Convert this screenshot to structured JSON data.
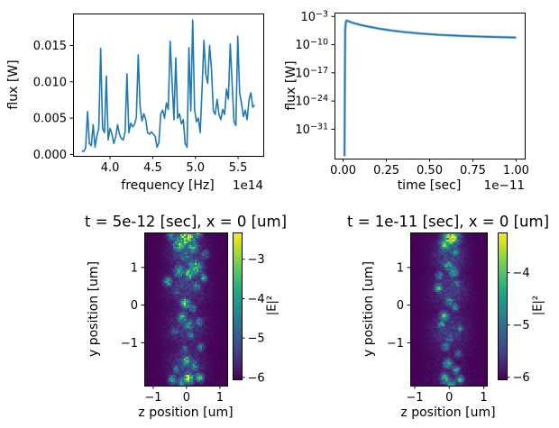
{
  "figure": {
    "background": "#ffffff",
    "line_color": "#1f77b4",
    "text_color": "#000000",
    "spine_color": "#000000",
    "viridis_stops": [
      "#440154",
      "#482475",
      "#414487",
      "#355f8d",
      "#2a788e",
      "#21918c",
      "#22a884",
      "#44bf70",
      "#7ad151",
      "#bddf26",
      "#fde725"
    ]
  },
  "chart_data": [
    {
      "id": "flux-spectrum",
      "type": "line",
      "xlabel": "frequency [Hz]",
      "ylabel": "flux [W]",
      "x_offset": "1e14",
      "xlim": [
        3.566,
        5.795
      ],
      "ylim": [
        -0.0002,
        0.0194
      ],
      "xticks": [
        4.0,
        4.5,
        5.0,
        5.5
      ],
      "xtick_labels": [
        "4.0",
        "4.5",
        "5.0",
        "5.5"
      ],
      "yticks": [
        0.0,
        0.005,
        0.01,
        0.015
      ],
      "ytick_labels": [
        "0.000",
        "0.005",
        "0.010",
        "0.015"
      ],
      "x_start": 3.67,
      "x_step": 0.022,
      "y": [
        0.0005,
        0.0004,
        0.0009,
        0.0059,
        0.0015,
        0.0012,
        0.0041,
        0.001,
        0.0026,
        0.0036,
        0.0146,
        0.0036,
        0.003,
        0.0108,
        0.002,
        0.0036,
        0.0028,
        0.0015,
        0.0024,
        0.0041,
        0.0028,
        0.0022,
        0.002,
        0.0031,
        0.0111,
        0.003,
        0.0043,
        0.0038,
        0.0041,
        0.0051,
        0.0137,
        0.0066,
        0.0046,
        0.0056,
        0.0048,
        0.003,
        0.0028,
        0.0031,
        0.0028,
        0.0025,
        0.001,
        0.0016,
        0.0056,
        0.0061,
        0.005,
        0.0071,
        0.0062,
        0.0156,
        0.0102,
        0.0048,
        0.0133,
        0.005,
        0.0056,
        0.0042,
        0.0048,
        0.0015,
        0.001,
        0.0147,
        0.006,
        0.0185,
        0.0062,
        0.0045,
        0.005,
        0.003,
        0.0091,
        0.0157,
        0.011,
        0.0098,
        0.015,
        0.0118,
        0.006,
        0.0055,
        0.0076,
        0.0055,
        0.0048,
        0.0062,
        0.0055,
        0.009,
        0.0076,
        0.0152,
        0.0098,
        0.0045,
        0.004,
        0.0163,
        0.0085,
        0.007,
        0.0052,
        0.0061,
        0.0048,
        0.0075,
        0.0085,
        0.0065,
        0.0068
      ]
    },
    {
      "id": "flux-decay",
      "type": "line",
      "yscale": "log",
      "xlabel": "time [sec]",
      "ylabel": "flux [W]",
      "x_offset": "1e−11",
      "xlim": [
        -0.05,
        1.05
      ],
      "ylim_exp": [
        -38.3,
        -2.04
      ],
      "xticks": [
        0.0,
        0.25,
        0.5,
        0.75,
        1.0
      ],
      "xtick_labels": [
        "0.00",
        "0.25",
        "0.50",
        "0.75",
        "1.00"
      ],
      "ytick_exponents": [
        -3,
        -10,
        -17,
        -24,
        -31
      ],
      "x": [
        0.008,
        0.01,
        0.012,
        0.015,
        0.018,
        0.02,
        0.05,
        0.1,
        0.15,
        0.2,
        0.25,
        0.3,
        0.35,
        0.4,
        0.45,
        0.5,
        0.55,
        0.6,
        0.65,
        0.7,
        0.75,
        0.8,
        0.85,
        0.9,
        0.95,
        1.0
      ],
      "y": [
        2e-38,
        1e-20,
        3e-07,
        2e-05,
        7e-05,
        0.0001,
        3.2e-05,
        7.9e-06,
        2.8e-06,
        1.1e-06,
        5e-07,
        2.5e-07,
        1.4e-07,
        8.9e-08,
        5.6e-08,
        4e-08,
        2.8e-08,
        2.2e-08,
        1.8e-08,
        1.4e-08,
        1.2e-08,
        1e-08,
        8.7e-09,
        7.6e-09,
        6.6e-09,
        6e-09
      ]
    },
    {
      "id": "field-snapshot-t5e-12",
      "type": "heatmap",
      "title": "t = 5e-12 [sec], x = 0 [um]",
      "xlabel": "z position [um]",
      "ylabel": "y position [um]",
      "xlim": [
        -1.27,
        1.22
      ],
      "ylim": [
        -2.14,
        1.93
      ],
      "xticks": [
        -1,
        0,
        1
      ],
      "xtick_labels": [
        "−1",
        "0",
        "1"
      ],
      "yticks": [
        -1,
        0,
        1
      ],
      "ytick_labels": [
        "−1",
        "0",
        "1"
      ],
      "colorbar": {
        "label": "|E|²",
        "vmin": -6.05,
        "vmax": -2.32,
        "ticks": [
          -3,
          -4,
          -5,
          -6
        ],
        "tick_labels": [
          "−3",
          "−4",
          "−5",
          "−6"
        ]
      },
      "noise_seed": 1,
      "base_value": -6.05,
      "blobs": [
        [
          0.0,
          1.8,
          -2.4,
          0.22
        ],
        [
          -0.2,
          1.62,
          -3.2,
          0.18
        ],
        [
          0.18,
          1.55,
          -3.6,
          0.15
        ],
        [
          0.32,
          1.9,
          -3.4,
          0.12
        ],
        [
          -0.45,
          1.85,
          -4.0,
          0.12
        ],
        [
          -0.05,
          1.3,
          -4.2,
          0.15
        ],
        [
          0.55,
          1.35,
          -4.8,
          0.12
        ],
        [
          0.25,
          1.0,
          -3.3,
          0.2
        ],
        [
          0.08,
          0.82,
          -2.9,
          0.13
        ],
        [
          -0.22,
          0.9,
          -3.8,
          0.15
        ],
        [
          0.5,
          0.72,
          -4.0,
          0.1
        ],
        [
          -0.55,
          0.62,
          -3.9,
          0.12
        ],
        [
          0.3,
          0.5,
          -4.3,
          0.12
        ],
        [
          -0.3,
          0.35,
          -4.7,
          0.1
        ],
        [
          -0.04,
          0.05,
          -3.0,
          0.13
        ],
        [
          0.18,
          -0.08,
          -4.2,
          0.1
        ],
        [
          -0.12,
          -0.33,
          -3.7,
          0.13
        ],
        [
          0.06,
          -0.52,
          -3.9,
          0.13
        ],
        [
          0.38,
          -0.45,
          -4.4,
          0.1
        ],
        [
          -0.35,
          -0.72,
          -4.6,
          0.1
        ],
        [
          0.12,
          -0.8,
          -4.3,
          0.1
        ],
        [
          -0.06,
          -1.18,
          -4.5,
          0.1
        ],
        [
          0.42,
          -1.12,
          -4.6,
          0.1
        ],
        [
          0.0,
          -1.48,
          -3.6,
          0.14
        ],
        [
          0.22,
          -1.62,
          -3.9,
          0.12
        ],
        [
          -0.3,
          -1.7,
          -4.3,
          0.1
        ],
        [
          0.05,
          -1.95,
          -2.5,
          0.14
        ],
        [
          0.38,
          -1.92,
          -3.5,
          0.11
        ],
        [
          -0.42,
          -1.98,
          -3.8,
          0.11
        ],
        [
          -0.15,
          -2.05,
          -3.9,
          0.12
        ],
        [
          0.0,
          0.5,
          -5.3,
          0.5
        ],
        [
          0.0,
          -0.6,
          -5.4,
          0.5
        ],
        [
          0.0,
          1.4,
          -5.2,
          0.45
        ],
        [
          0.0,
          -1.6,
          -5.3,
          0.45
        ]
      ]
    },
    {
      "id": "field-snapshot-t1e-11",
      "type": "heatmap",
      "title": "t = 1e-11 [sec], x = 0 [um]",
      "xlabel": "z position [um]",
      "ylabel": "y position [um]",
      "xlim": [
        -1.13,
        1.09
      ],
      "ylim": [
        -2.14,
        1.93
      ],
      "xticks": [
        -1,
        0,
        1
      ],
      "xtick_labels": [
        "−1",
        "0",
        "1"
      ],
      "yticks": [
        -1,
        0,
        1
      ],
      "ytick_labels": [
        "−1",
        "0",
        "1"
      ],
      "colorbar": {
        "label": "|E|²",
        "vmin": -6.04,
        "vmax": -3.23,
        "ticks": [
          -4,
          -5,
          -6
        ],
        "tick_labels": [
          "−4",
          "−5",
          "−6"
        ]
      },
      "noise_seed": 2,
      "base_value": -6.04,
      "blobs": [
        [
          0.06,
          1.78,
          -3.4,
          0.2
        ],
        [
          -0.12,
          1.6,
          -4.1,
          0.15
        ],
        [
          0.22,
          1.95,
          -4.2,
          0.11
        ],
        [
          0.18,
          1.42,
          -4.5,
          0.11
        ],
        [
          -0.02,
          1.05,
          -4.3,
          0.13
        ],
        [
          0.12,
          0.88,
          -4.2,
          0.13
        ],
        [
          -0.28,
          0.78,
          -4.7,
          0.1
        ],
        [
          -0.3,
          0.45,
          -4.3,
          0.11
        ],
        [
          0.22,
          0.58,
          -4.8,
          0.1
        ],
        [
          0.0,
          0.1,
          -4.4,
          0.11
        ],
        [
          0.16,
          -0.06,
          -4.5,
          0.1
        ],
        [
          -0.14,
          -0.3,
          -4.2,
          0.12
        ],
        [
          -0.22,
          -0.52,
          -4.3,
          0.1
        ],
        [
          0.3,
          -0.62,
          -4.7,
          0.1
        ],
        [
          0.02,
          -0.9,
          -4.9,
          0.1
        ],
        [
          -0.1,
          -1.1,
          -4.7,
          0.1
        ],
        [
          0.26,
          -1.28,
          -4.9,
          0.1
        ],
        [
          -0.04,
          -1.55,
          -4.3,
          0.12
        ],
        [
          0.2,
          -1.72,
          -4.5,
          0.1
        ],
        [
          -0.12,
          -1.95,
          -4.1,
          0.12
        ],
        [
          0.3,
          -1.98,
          -4.3,
          0.1
        ],
        [
          0.05,
          -2.1,
          -4.4,
          0.12
        ],
        [
          0.0,
          0.4,
          -5.5,
          0.45
        ],
        [
          0.0,
          -0.7,
          -5.5,
          0.45
        ],
        [
          0.0,
          1.3,
          -5.4,
          0.4
        ]
      ]
    }
  ]
}
